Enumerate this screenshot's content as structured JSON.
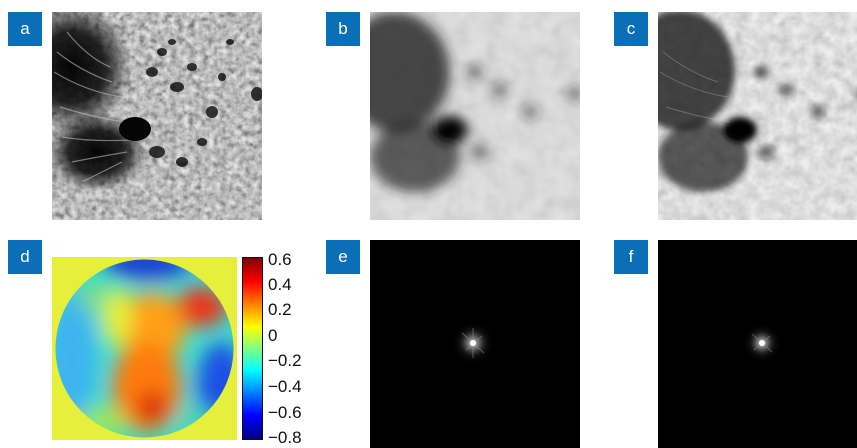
{
  "panels": [
    {
      "label": "a",
      "image": "solar-granulation-sharp"
    },
    {
      "label": "b",
      "image": "solar-granulation-blurred"
    },
    {
      "label": "c",
      "image": "solar-granulation-restored"
    },
    {
      "label": "d",
      "image": "wavefront-phase-map"
    },
    {
      "label": "e",
      "image": "point-spread-function"
    },
    {
      "label": "f",
      "image": "point-spread-function-estimate"
    }
  ],
  "colorbar": {
    "ticks": [
      "0.6",
      "0.4",
      "0.2",
      "0",
      "−0.2",
      "−0.4",
      "−0.6",
      "−0.8"
    ],
    "colormap": "jet",
    "min": -0.8,
    "max": 0.6
  },
  "colors": {
    "label_bg": "#0a6fb6",
    "label_text": "#ffffff",
    "phase_background": "#e6f03c"
  }
}
